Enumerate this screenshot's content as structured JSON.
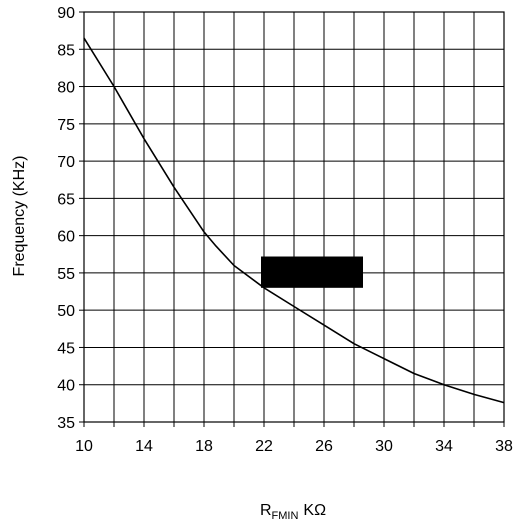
{
  "chart_data": {
    "type": "line",
    "title": "",
    "xlabel_main": "R",
    "xlabel_sub": "FMIN",
    "xlabel_unit": "KΩ",
    "ylabel": "Frequency (KHz)",
    "xlim": [
      10,
      38
    ],
    "ylim": [
      35,
      90
    ],
    "x_ticks": [
      10,
      14,
      18,
      22,
      26,
      30,
      34,
      38
    ],
    "x_minor_step": 2,
    "y_ticks": [
      35,
      40,
      45,
      50,
      55,
      60,
      65,
      70,
      75,
      80,
      85,
      90
    ],
    "grid": true,
    "series": [
      {
        "color": "#000000",
        "x": [
          10,
          12,
          14,
          16,
          18,
          18.8,
          20,
          22,
          24,
          26,
          28,
          30,
          32,
          34,
          36,
          38
        ],
        "y": [
          86.5,
          80.0,
          73.0,
          66.5,
          60.5,
          58.6,
          56.0,
          53.0,
          50.5,
          48.0,
          45.5,
          43.5,
          41.5,
          40.0,
          38.7,
          37.6
        ]
      }
    ],
    "redaction": {
      "shape": "filled-rectangle",
      "color": "#000000",
      "x_range": [
        21.8,
        28.6
      ],
      "y_range": [
        53.0,
        57.2
      ]
    }
  }
}
